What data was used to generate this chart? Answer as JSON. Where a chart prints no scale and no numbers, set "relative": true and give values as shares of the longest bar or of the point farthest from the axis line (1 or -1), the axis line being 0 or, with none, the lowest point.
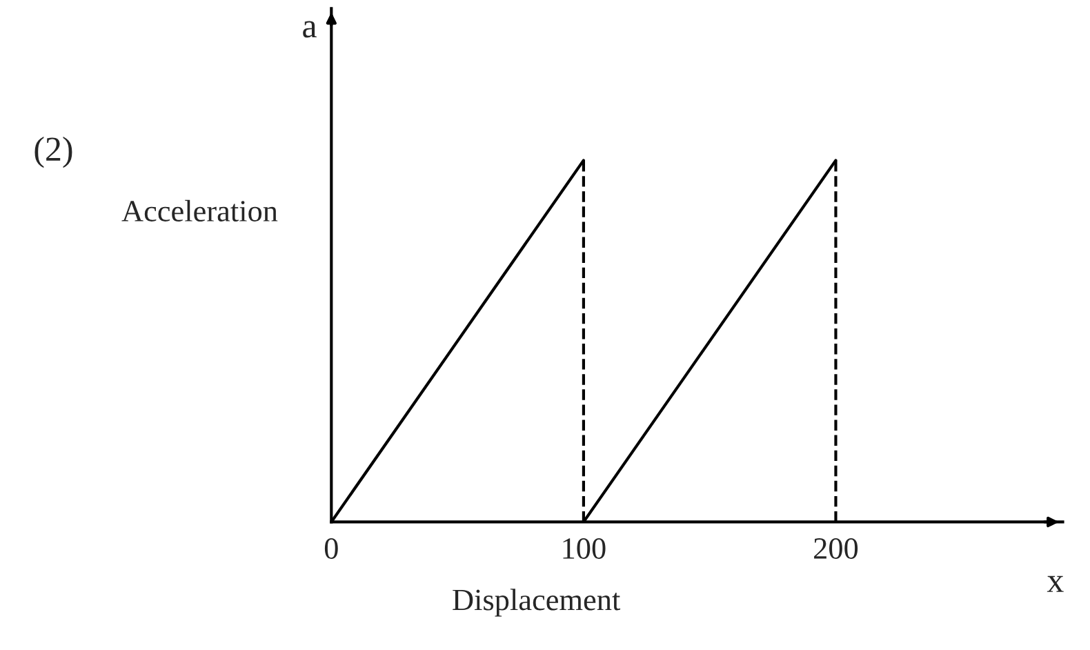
{
  "chart_data": {
    "type": "line",
    "relative": true,
    "xlabel": "Displacement",
    "ylabel": "Acceleration",
    "annotations": [
      "(2)",
      "a",
      "x"
    ],
    "series": [
      {
        "color": "#000000",
        "values": [
          0,
          1
        ],
        "x": [
          0,
          100
        ]
      },
      {
        "color": "#000000",
        "values": [
          0,
          1
        ],
        "x": [
          100,
          200
        ]
      }
    ],
    "xlim": [
      0,
      290
    ],
    "xticks": [
      0,
      100,
      200
    ],
    "ref_lines": [
      {
        "axis": "x",
        "value": 100,
        "line_style": "dashed",
        "color": "#000000"
      },
      {
        "axis": "x",
        "value": 200,
        "line_style": "dashed",
        "color": "#000000"
      }
    ],
    "line_style": "solid",
    "grid": false,
    "legend": false
  }
}
